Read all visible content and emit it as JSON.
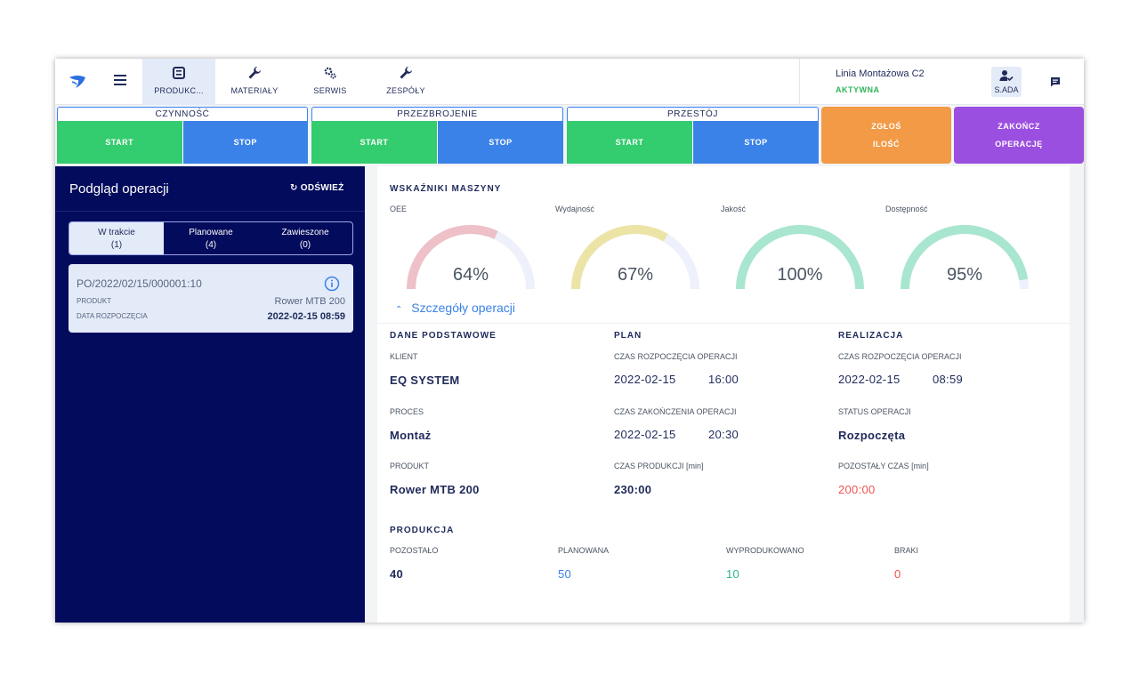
{
  "nav": {
    "tabs": [
      {
        "label": "PRODUKC...",
        "icon": "list-icon",
        "active": true
      },
      {
        "label": "MATERIAŁY",
        "icon": "wrench-icon",
        "active": false
      },
      {
        "label": "SERWIS",
        "icon": "gears-icon",
        "active": false
      },
      {
        "label": "ZESPÓŁY",
        "icon": "wrench-icon",
        "active": false
      }
    ],
    "line_name": "Linia Montażowa C2",
    "line_status": "AKTYWNA",
    "user": "S.ADA"
  },
  "actions": {
    "groups": [
      {
        "title": "CZYNNOŚĆ",
        "start": "START",
        "stop": "STOP"
      },
      {
        "title": "PRZEZBROJENIE",
        "start": "START",
        "stop": "STOP"
      },
      {
        "title": "PRZESTÓJ",
        "start": "START",
        "stop": "STOP"
      }
    ],
    "report_line1": "ZGŁOŚ",
    "report_line2": "ILOŚĆ",
    "finish_line1": "ZAKOŃCZ",
    "finish_line2": "OPERACJĘ",
    "colors": {
      "start": "#33cc6e",
      "stop": "#3b82e8",
      "report": "#f29a46",
      "finish": "#9b4fe0"
    }
  },
  "left": {
    "title": "Podgląd operacji",
    "refresh": "ODŚWIEŻ",
    "filters": [
      {
        "label": "W trakcie",
        "count": "(1)",
        "active": true
      },
      {
        "label": "Planowane",
        "count": "(4)",
        "active": false
      },
      {
        "label": "Zawieszone",
        "count": "(0)",
        "active": false
      }
    ],
    "card": {
      "number": "PO/2022/02/15/000001:10",
      "product_label": "PRODUKT",
      "product_value": "Rower MTB 200",
      "date_label": "DATA ROZPOCZĘCIA",
      "date_value": "2022-02-15 08:59"
    }
  },
  "indicators": {
    "title": "WSKAŹNIKI MASZYNY",
    "gauges": [
      {
        "label": "OEE",
        "value_text": "64%",
        "value": 64,
        "color": "#eec0c8"
      },
      {
        "label": "Wydajność",
        "value_text": "67%",
        "value": 67,
        "color": "#ece4a6"
      },
      {
        "label": "Jakość",
        "value_text": "100%",
        "value": 100,
        "color": "#a8e6cf"
      },
      {
        "label": "Dostępność",
        "value_text": "95%",
        "value": 95,
        "color": "#a8e6cf"
      }
    ],
    "track_color": "#eef0fb"
  },
  "details": {
    "toggle": "Szczegóły operacji",
    "basic": {
      "header": "DANE PODSTAWOWE",
      "client_label": "KLIENT",
      "client": "EQ SYSTEM",
      "process_label": "PROCES",
      "process": "Montaż",
      "product_label": "PRODUKT",
      "product": "Rower MTB 200"
    },
    "plan": {
      "header": "PLAN",
      "start_label": "CZAS ROZPOCZĘCIA OPERACJI",
      "start_date": "2022-02-15",
      "start_time": "16:00",
      "end_label": "CZAS ZAKOŃCZENIA OPERACJI",
      "end_date": "2022-02-15",
      "end_time": "20:30",
      "prod_time_label": "CZAS PRODUKCJI [min]",
      "prod_time": "230:00"
    },
    "realization": {
      "header": "REALIZACJA",
      "start_label": "CZAS ROZPOCZĘCIA OPERACJI",
      "start_date": "2022-02-15",
      "start_time": "08:59",
      "status_label": "STATUS OPERACJI",
      "status": "Rozpoczęta",
      "remaining_label": "POZOSTAŁY CZAS [min]",
      "remaining": "200:00"
    },
    "production": {
      "header": "PRODUKCJA",
      "left_label": "POZOSTAŁO",
      "left": "40",
      "planned_label": "PLANOWANA",
      "planned": "50",
      "produced_label": "WYPRODUKOWANO",
      "produced": "10",
      "defects_label": "BRAKI",
      "defects": "0"
    }
  }
}
